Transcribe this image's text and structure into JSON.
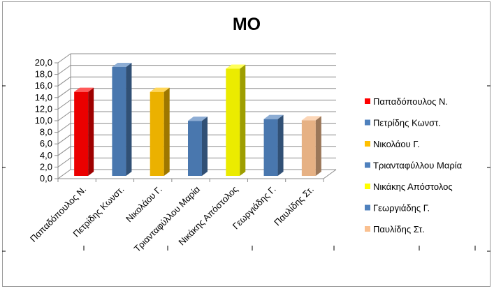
{
  "chart_data": {
    "type": "bar",
    "title": "ΜΟ",
    "categories": [
      "Παπαδόπουλος Ν.",
      "Πετρίδης Κωνστ.",
      "Νικολάου Γ.",
      "Τριανταφύλλου Μαρία",
      "Νικάκης Απόστολος",
      "Γεωργιάδης Γ.",
      "Παυλίδης Στ."
    ],
    "values": [
      14.5,
      18.8,
      14.5,
      9.5,
      18.5,
      9.8,
      9.6
    ],
    "colors": [
      "#ff0000",
      "#4f81bd",
      "#ffc000",
      "#4f81bd",
      "#ffff00",
      "#4f81bd",
      "#fac090"
    ],
    "ylim": [
      0,
      20
    ],
    "yticks": [
      "0,0",
      "2,0",
      "4,0",
      "6,0",
      "8,0",
      "10,0",
      "12,0",
      "14,0",
      "16,0",
      "18,0",
      "20,0"
    ],
    "grid": true,
    "legend": "right",
    "style": "3d-columns"
  }
}
